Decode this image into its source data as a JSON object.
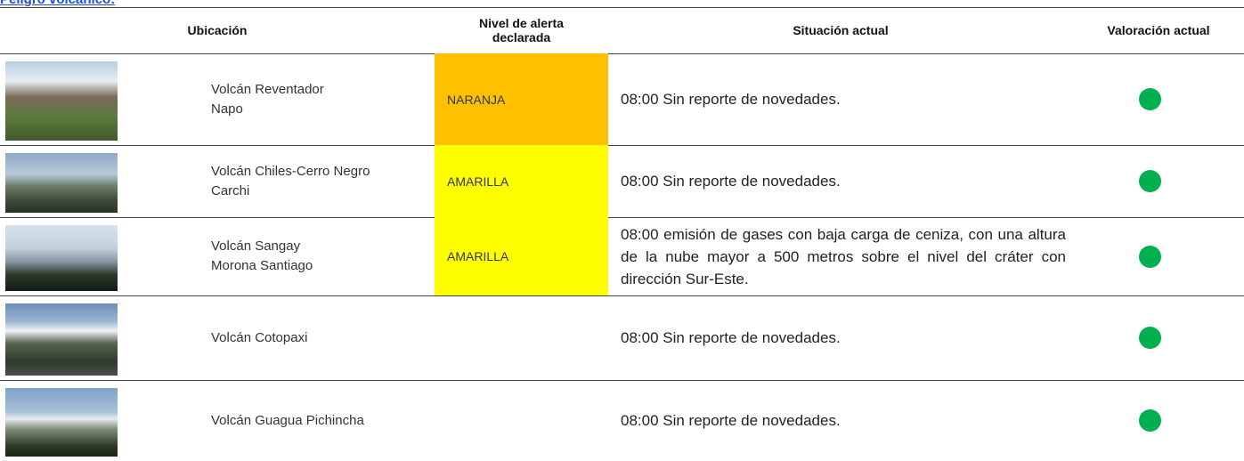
{
  "header": {
    "link": "Peligro volcánico:"
  },
  "table": {
    "columns": [
      "Ubicación",
      "Nivel de alerta declarada",
      "Situación actual",
      "Valoración actual"
    ],
    "rows": [
      {
        "location": [
          "Volcán Reventador",
          "Napo"
        ],
        "alert": "NARANJA",
        "alert_color": "#ffc000",
        "situation": "08:00 Sin reporte de novedades.",
        "status_color": "#00b050"
      },
      {
        "location": [
          "Volcán Chiles-Cerro Negro",
          "Carchi"
        ],
        "alert": "AMARILLA",
        "alert_color": "#ffff00",
        "situation": "08:00 Sin reporte de novedades.",
        "status_color": "#00b050"
      },
      {
        "location": [
          "Volcán Sangay",
          "Morona Santiago"
        ],
        "alert": "AMARILLA",
        "alert_color": "#ffff00",
        "situation": "08:00 emisión de gases con baja carga de ceniza, con una altura de la nube mayor a 500 metros sobre el nivel del cráter con dirección Sur-Este.",
        "status_color": "#00b050"
      },
      {
        "location": [
          "Volcán Cotopaxi"
        ],
        "alert": null,
        "alert_color": null,
        "situation": "08:00 Sin reporte de novedades.",
        "status_color": "#00b050"
      },
      {
        "location": [
          "Volcán Guagua Pichincha"
        ],
        "alert": null,
        "alert_color": null,
        "situation": "08:00 Sin reporte de novedades.",
        "status_color": "#00b050"
      }
    ]
  }
}
